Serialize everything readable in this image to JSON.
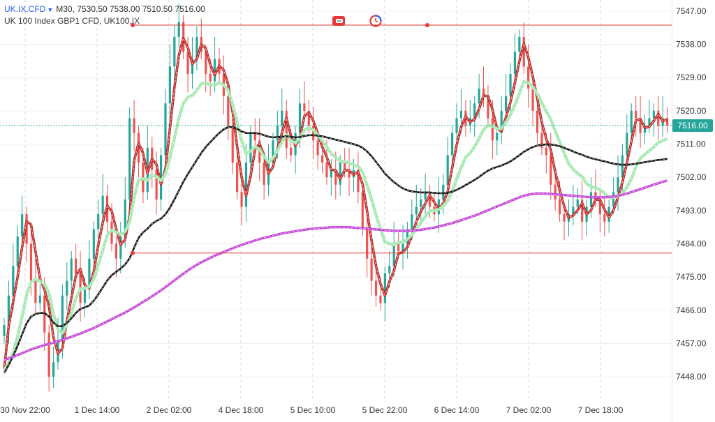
{
  "header": {
    "symbol": "UK.IX.CFD",
    "timeframe": "M30,",
    "ohlc": "7530.50 7538.00 7510.50 7516.00",
    "description": "UK 100 Index GBP1 CFD, UK100.IX"
  },
  "toolbar": {
    "icons": [
      "toggle-icon",
      "clock-icon"
    ]
  },
  "current_price": "7516.00",
  "colors": {
    "up_candle": "#26a69a",
    "down_candle": "#ef5350",
    "ma_fast": "#e53935",
    "ma_medium": "#a5e8b0",
    "ma_slow": "#111111",
    "ma_long": "#c848d8",
    "price_tag": "#26a69a",
    "horizontal_lines": "#e53935"
  },
  "chart_data": {
    "type": "candlestick",
    "y_axis": {
      "ticks": [
        "7547.00",
        "7538.00",
        "7529.00",
        "7520.00",
        "7511.00",
        "7502.00",
        "7493.00",
        "7484.00",
        "7475.00",
        "7466.00",
        "7457.00",
        "7448.00"
      ],
      "ylim": [
        7442,
        7550
      ]
    },
    "x_axis": {
      "ticks": [
        "30 Nov 22:00",
        "1 Dec 14:00",
        "2 Dec 02:00",
        "4 Dec 18:00",
        "5 Dec 10:00",
        "5 Dec 22:00",
        "6 Dec 14:00",
        "7 Dec 02:00",
        "7 Dec 18:00"
      ]
    },
    "horizontal_levels": [
      7543.2,
      7481.5
    ],
    "closes": [
      7462,
      7470,
      7478,
      7486,
      7492,
      7484,
      7474,
      7468,
      7470,
      7460,
      7448,
      7452,
      7458,
      7470,
      7474,
      7480,
      7476,
      7468,
      7472,
      7480,
      7488,
      7492,
      7497,
      7490,
      7484,
      7480,
      7486,
      7496,
      7518,
      7514,
      7506,
      7498,
      7510,
      7504,
      7496,
      7508,
      7522,
      7532,
      7540,
      7544,
      7536,
      7530,
      7534,
      7540,
      7536,
      7530,
      7528,
      7534,
      7530,
      7524,
      7516,
      7506,
      7498,
      7494,
      7506,
      7514,
      7512,
      7506,
      7500,
      7506,
      7512,
      7516,
      7520,
      7510,
      7508,
      7514,
      7522,
      7520,
      7516,
      7512,
      7508,
      7506,
      7502,
      7504,
      7500,
      7506,
      7504,
      7502,
      7504,
      7498,
      7488,
      7480,
      7474,
      7470,
      7468,
      7476,
      7478,
      7484,
      7482,
      7484,
      7488,
      7492,
      7494,
      7496,
      7498,
      7494,
      7492,
      7496,
      7500,
      7508,
      7514,
      7518,
      7520,
      7516,
      7518,
      7522,
      7526,
      7524,
      7518,
      7512,
      7514,
      7520,
      7524,
      7530,
      7536,
      7540,
      7532,
      7526,
      7520,
      7514,
      7510,
      7508,
      7500,
      7496,
      7492,
      7490,
      7492,
      7494,
      7496,
      7490,
      7494,
      7498,
      7496,
      7492,
      7490,
      7494,
      7498,
      7502,
      7508,
      7514,
      7520,
      7518,
      7514,
      7516,
      7518,
      7520,
      7516,
      7518,
      7516
    ],
    "series": [
      {
        "values": [
          7450.0,
          7461.6,
          7468.3,
          7475.0,
          7483.1,
          7490.1,
          7489.2,
          7481.9,
          7474.6,
          7471.6,
          7467.0,
          7458.7,
          7454.3,
          7455.7,
          7463.1,
          7469.3,
          7475.4,
          7477.2,
          7472.8,
          7471.9,
          7476.5,
          7483.6,
          7489.8,
          7494.3,
          7492.9,
          7488.0,
          7483.7,
          7485.2,
          7491.6,
          7506.6,
          7511.3,
          7508.5,
          7503.1,
          7507.0,
          7505.5,
          7500.1,
          7504.3,
          7515.3,
          7526.3,
          7535.0,
          7539.7,
          7537.1,
          7532.7,
          7534.0,
          7538.0,
          7536.9,
          7532.6,
          7529.7,
          7532.2,
          7531.0,
          7527.1,
          7519.7,
          7510.4,
          7502.0,
          7497.0,
          7502.3,
          7509.5,
          7511.1,
          7508.0,
          7503.0,
          7504.9,
          7509.8,
          7514.0,
          7518.1,
          7513.3,
          7510.5,
          7512.6,
          7518.6,
          7519.5,
          7517.3,
          7514.0,
          7510.3,
          7507.5,
          7504.1,
          7503.9,
          7501.5,
          7503.9,
          7503.9,
          7502.7,
          7503.5,
          7500.2,
          7492.9,
          7484.9,
          7478.0,
          7473.1,
          7470.0,
          7473.8,
          7476.7,
          7481.4,
          7481.7,
          7483.1,
          7486.2,
          7490.0,
          7492.7,
          7494.9,
          7497.1,
          7495.3,
          7493.3,
          7495.0,
          7498.2,
          7504.6,
          7510.7,
          7515.6,
          7518.5,
          7517.0,
          7517.7,
          7520.5,
          7524.1,
          7524.0,
          7520.3,
          7515.3,
          7514.4,
          7518.3,
          7522.3,
          7527.6,
          7533.5,
          7538.2,
          7534.4,
          7529.3,
          7523.3,
          7516.9,
          7512.4,
          7509.5,
          7503.4,
          7498.6,
          7494.1,
          7491.1,
          7491.7,
          7493.1,
          7495.0,
          7492.0,
          7493.1,
          7496.0,
          7495.9,
          7493.3,
          7491.2,
          7493.1,
          7496.6,
          7500.6,
          7505.9,
          7511.7,
          7517.4,
          7517.8,
          7515.4,
          7515.7,
          7517.3,
          7519.1,
          7517.2,
          7517.7
        ]
      },
      {
        "values": [
          7450.0,
          7451.5,
          7454.6,
          7458.9,
          7464.4,
          7470.1,
          7473.6,
          7474.4,
          7473.9,
          7473.1,
          7470.6,
          7464.9,
          7460.8,
          7459.8,
          7462.1,
          7465.3,
          7469.2,
          7471.8,
          7471.9,
          7472.4,
          7474.5,
          7478.3,
          7482.3,
          7486.3,
          7487.7,
          7487.2,
          7486.6,
          7487.3,
          7490.0,
          7496.6,
          7501.2,
          7501.6,
          7501.2,
          7502.6,
          7502.2,
          7501.1,
          7502.9,
          7507.4,
          7512.6,
          7518.0,
          7522.0,
          7523.7,
          7524.2,
          7525.6,
          7527.3,
          7527.6,
          7527.0,
          7526.9,
          7527.6,
          7527.0,
          7525.5,
          7521.7,
          7516.9,
          7511.9,
          7508.4,
          7509.1,
          7510.3,
          7509.6,
          7507.6,
          7506.1,
          7507.2,
          7509.3,
          7511.5,
          7513.5,
          7511.9,
          7511.3,
          7512.5,
          7514.8,
          7515.4,
          7514.8,
          7513.6,
          7511.9,
          7510.2,
          7508.4,
          7507.4,
          7506.4,
          7506.2,
          7505.9,
          7505.3,
          7505.0,
          7503.4,
          7499.9,
          7496.1,
          7491.8,
          7488.0,
          7484.5,
          7484.0,
          7483.8,
          7484.3,
          7484.5,
          7485.2,
          7486.4,
          7488.1,
          7489.7,
          7491.4,
          7492.9,
          7493.0,
          7493.3,
          7494.2,
          7495.7,
          7498.3,
          7501.5,
          7504.6,
          7507.4,
          7508.6,
          7510.3,
          7512.5,
          7514.9,
          7516.0,
          7515.9,
          7515.1,
          7515.3,
          7516.9,
          7518.9,
          7521.6,
          7524.8,
          7527.9,
          7527.6,
          7526.5,
          7524.6,
          7522.2,
          7519.8,
          7517.7,
          7514.5,
          7511.6,
          7508.6,
          7505.7,
          7504.2,
          7503.0,
          7502.2,
          7500.3,
          7499.4,
          7499.2,
          7498.7,
          7497.7,
          7496.6,
          7496.5,
          7496.9,
          7497.7,
          7499.3,
          7501.6,
          7504.8,
          7507.1,
          7508.2,
          7509.2,
          7510.2,
          7511.4,
          7511.9,
          7512.5
        ]
      },
      {
        "values": [
          7449.0,
          7451.2,
          7453.6,
          7456.4,
          7459.5,
          7462.5,
          7464.3,
          7465.0,
          7465.3,
          7465.3,
          7464.3,
          7462.7,
          7461.7,
          7461.7,
          7462.6,
          7463.8,
          7465.3,
          7466.4,
          7466.8,
          7467.3,
          7468.6,
          7470.3,
          7472.2,
          7474.1,
          7475.5,
          7476.4,
          7477.3,
          7478.4,
          7480.1,
          7483.0,
          7485.6,
          7487.1,
          7488.1,
          7489.4,
          7490.2,
          7490.8,
          7492.0,
          7493.8,
          7496.0,
          7498.4,
          7500.8,
          7502.9,
          7504.8,
          7506.7,
          7508.6,
          7510.2,
          7511.5,
          7512.8,
          7514.0,
          7515.0,
          7515.6,
          7515.6,
          7515.1,
          7514.4,
          7514.0,
          7514.0,
          7514.0,
          7513.8,
          7513.4,
          7513.0,
          7512.8,
          7512.9,
          7513.0,
          7513.1,
          7513.0,
          7512.8,
          7512.9,
          7513.2,
          7513.4,
          7513.4,
          7513.3,
          7513.1,
          7512.8,
          7512.5,
          7512.2,
          7511.9,
          7511.6,
          7511.3,
          7511.0,
          7510.6,
          7510.0,
          7509.0,
          7507.7,
          7506.2,
          7504.6,
          7503.0,
          7501.8,
          7500.7,
          7499.8,
          7499.0,
          7498.5,
          7498.2,
          7498.0,
          7497.9,
          7497.9,
          7497.9,
          7497.8,
          7497.7,
          7497.7,
          7497.8,
          7498.1,
          7498.6,
          7499.2,
          7499.9,
          7500.6,
          7501.3,
          7502.1,
          7503.0,
          7503.8,
          7504.4,
          7504.8,
          7505.2,
          7505.7,
          7506.3,
          7507.1,
          7508.0,
          7508.9,
          7509.6,
          7510.2,
          7510.6,
          7510.8,
          7510.9,
          7510.9,
          7510.7,
          7510.4,
          7510.0,
          7509.5,
          7509.0,
          7508.5,
          7508.1,
          7507.6,
          7507.2,
          7506.9,
          7506.6,
          7506.3,
          7506.0,
          7505.7,
          7505.5,
          7505.4,
          7505.4,
          7505.5,
          7505.7,
          7505.9,
          7506.1,
          7506.3,
          7506.5,
          7506.7,
          7506.8,
          7507.0
        ]
      },
      {
        "values": [
          7452.5,
          7453.0,
          7453.4,
          7453.9,
          7454.4,
          7454.9,
          7455.4,
          7455.8,
          7456.2,
          7456.6,
          7456.9,
          7457.3,
          7457.6,
          7458.0,
          7458.4,
          7458.8,
          7459.3,
          7459.7,
          7460.2,
          7460.7,
          7461.2,
          7461.8,
          7462.4,
          7463.0,
          7463.6,
          7464.2,
          7464.8,
          7465.4,
          7466.1,
          7466.8,
          7467.5,
          7468.3,
          7469.0,
          7469.8,
          7470.6,
          7471.4,
          7472.3,
          7473.2,
          7474.1,
          7475.0,
          7475.9,
          7476.8,
          7477.6,
          7478.3,
          7479.0,
          7479.6,
          7480.2,
          7480.8,
          7481.3,
          7481.8,
          7482.3,
          7482.8,
          7483.3,
          7483.7,
          7484.1,
          7484.5,
          7484.9,
          7485.3,
          7485.6,
          7485.9,
          7486.2,
          7486.5,
          7486.8,
          7487.0,
          7487.2,
          7487.4,
          7487.6,
          7487.8,
          7488.0,
          7488.1,
          7488.2,
          7488.3,
          7488.4,
          7488.5,
          7488.5,
          7488.5,
          7488.5,
          7488.5,
          7488.4,
          7488.3,
          7488.2,
          7488.1,
          7488.0,
          7487.9,
          7487.8,
          7487.7,
          7487.6,
          7487.5,
          7487.5,
          7487.5,
          7487.5,
          7487.6,
          7487.7,
          7487.8,
          7488.0,
          7488.2,
          7488.4,
          7488.7,
          7489.0,
          7489.3,
          7489.6,
          7490.0,
          7490.4,
          7490.8,
          7491.2,
          7491.6,
          7492.1,
          7492.6,
          7493.1,
          7493.6,
          7494.1,
          7494.6,
          7495.1,
          7495.6,
          7496.1,
          7496.6,
          7497.0,
          7497.3,
          7497.5,
          7497.6,
          7497.6,
          7497.6,
          7497.5,
          7497.4,
          7497.3,
          7497.2,
          7497.1,
          7497.0,
          7496.9,
          7496.8,
          7496.7,
          7496.6,
          7496.6,
          7496.6,
          7496.6,
          7496.7,
          7496.8,
          7497.0,
          7497.3,
          7497.6,
          7498.0,
          7498.4,
          7498.8,
          7499.2,
          7499.6,
          7500.0,
          7500.4,
          7500.8,
          7501.1
        ]
      }
    ]
  }
}
